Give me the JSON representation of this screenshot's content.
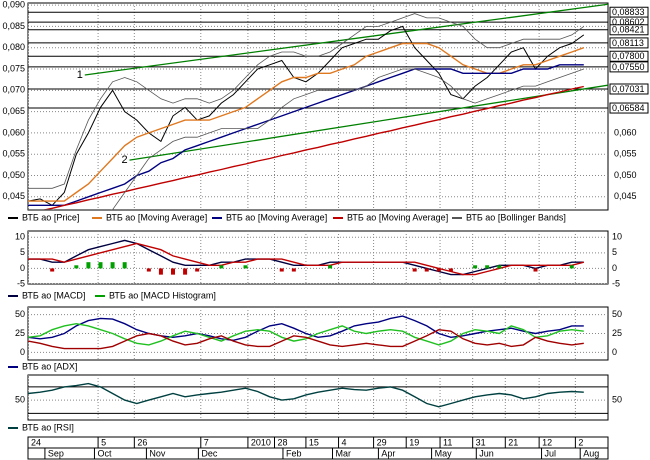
{
  "chart_data": [
    {
      "type": "line",
      "xlim": [
        0,
        48
      ],
      "xticks": [
        {
          "value": 0,
          "label": "24"
        },
        {
          "value": 5.8,
          "label": "5"
        },
        {
          "value": 8.8,
          "label": "26"
        },
        {
          "value": 14.3,
          "label": "7"
        },
        {
          "value": 18.2,
          "label": "2010"
        },
        {
          "value": 20.4,
          "label": "28"
        },
        {
          "value": 23.0,
          "label": "15"
        },
        {
          "value": 25.7,
          "label": "4"
        },
        {
          "value": 28.6,
          "label": "29"
        },
        {
          "value": 31.3,
          "label": "19"
        },
        {
          "value": 34.1,
          "label": "11"
        },
        {
          "value": 36.8,
          "label": "31"
        },
        {
          "value": 39.5,
          "label": "21"
        },
        {
          "value": 42.3,
          "label": "12"
        },
        {
          "value": 45.3,
          "label": "2"
        }
      ],
      "xtick_months": [
        {
          "value": 1.4,
          "label": "Sep"
        },
        {
          "value": 5.5,
          "label": "Oct"
        },
        {
          "value": 9.8,
          "label": "Nov"
        },
        {
          "value": 14.1,
          "label": "Dec"
        },
        {
          "value": 21.1,
          "label": "Feb"
        },
        {
          "value": 25.2,
          "label": "Mar"
        },
        {
          "value": 29.0,
          "label": "Apr"
        },
        {
          "value": 33.4,
          "label": "May"
        },
        {
          "value": 37.1,
          "label": "Jun"
        },
        {
          "value": 42.5,
          "label": "Jul"
        },
        {
          "value": 45.7,
          "label": "Aug"
        }
      ],
      "ylim": [
        0.0419,
        0.0905
      ],
      "yticks": [
        {
          "value": 0.09,
          "label": "0,090"
        },
        {
          "value": 0.085,
          "label": "0,085"
        },
        {
          "value": 0.08,
          "label": "0,080"
        },
        {
          "value": 0.075,
          "label": "0,075"
        },
        {
          "value": 0.07,
          "label": "0,070"
        },
        {
          "value": 0.065,
          "label": "0,065"
        },
        {
          "value": 0.06,
          "label": "0,060"
        },
        {
          "value": 0.055,
          "label": "0,055"
        },
        {
          "value": 0.05,
          "label": "0,050"
        },
        {
          "value": 0.045,
          "label": "0,045"
        }
      ],
      "right_ticks": [
        {
          "value": 0.06,
          "label": "0,060"
        },
        {
          "value": 0.055,
          "label": "0,055"
        },
        {
          "value": 0.05,
          "label": "0,050"
        },
        {
          "value": 0.045,
          "label": "0,045"
        }
      ],
      "levels": [
        {
          "value": 0.08833,
          "label": "0,08833"
        },
        {
          "value": 0.08602,
          "label": "0,08602"
        },
        {
          "value": 0.08421,
          "label": "0,08421"
        },
        {
          "value": 0.08113,
          "label": "0,08113"
        },
        {
          "value": 0.078,
          "label": "0,07800"
        },
        {
          "value": 0.0755,
          "label": "0,07550"
        },
        {
          "value": 0.07031,
          "label": "0,07031"
        },
        {
          "value": 0.06584,
          "label": "0,06584"
        }
      ],
      "trendlines": [
        {
          "label": "1",
          "color": "#008000",
          "from": [
            4.7,
            0.0736
          ],
          "to": [
            48,
            0.0902
          ]
        },
        {
          "label": "2",
          "color": "#008000",
          "from": [
            8.4,
            0.0536
          ],
          "to": [
            48,
            0.0712
          ]
        }
      ],
      "grid": true,
      "series": [
        {
          "name": "ВТБ ао [Price]",
          "color": "#000000",
          "values": [
            0.044,
            0.0445,
            0.043,
            0.046,
            0.055,
            0.06,
            0.066,
            0.07,
            0.065,
            0.063,
            0.06,
            0.058,
            0.064,
            0.066,
            0.063,
            0.064,
            0.067,
            0.069,
            0.072,
            0.075,
            0.076,
            0.077,
            0.073,
            0.072,
            0.074,
            0.077,
            0.08,
            0.081,
            0.082,
            0.082,
            0.084,
            0.085,
            0.08,
            0.077,
            0.074,
            0.069,
            0.068,
            0.071,
            0.073,
            0.076,
            0.079,
            0.08,
            0.075,
            0.078,
            0.08,
            0.081,
            0.083
          ]
        },
        {
          "name": "ВТБ ао [Moving Average]",
          "color": "#e07820",
          "values": [
            0.044,
            0.044,
            0.044,
            0.044,
            0.046,
            0.048,
            0.051,
            0.054,
            0.057,
            0.059,
            0.06,
            0.061,
            0.062,
            0.063,
            0.063,
            0.063,
            0.064,
            0.065,
            0.066,
            0.068,
            0.07,
            0.072,
            0.073,
            0.073,
            0.074,
            0.074,
            0.075,
            0.076,
            0.078,
            0.079,
            0.08,
            0.081,
            0.081,
            0.081,
            0.08,
            0.078,
            0.076,
            0.075,
            0.074,
            0.074,
            0.075,
            0.076,
            0.076,
            0.077,
            0.078,
            0.079,
            0.08
          ]
        },
        {
          "name": "ВТБ ао [Moving Average]",
          "color": "#000080",
          "values": [
            0.043,
            0.043,
            0.043,
            0.043,
            0.044,
            0.045,
            0.046,
            0.047,
            0.048,
            0.05,
            0.051,
            0.053,
            0.054,
            0.056,
            0.057,
            0.058,
            0.059,
            0.06,
            0.061,
            0.062,
            0.063,
            0.064,
            0.065,
            0.066,
            0.067,
            0.068,
            0.069,
            0.07,
            0.071,
            0.072,
            0.073,
            0.074,
            0.075,
            0.075,
            0.075,
            0.075,
            0.074,
            0.074,
            0.074,
            0.074,
            0.074,
            0.075,
            0.075,
            0.075,
            0.076,
            0.076,
            0.076
          ]
        },
        {
          "name": "ВТБ ао [Moving Average]",
          "color": "#c00000",
          "values": [
            0.041,
            0.0417,
            0.0423,
            0.043,
            0.0436,
            0.0443,
            0.0449,
            0.0456,
            0.0462,
            0.0469,
            0.0475,
            0.0482,
            0.0488,
            0.0495,
            0.0501,
            0.0508,
            0.0514,
            0.0521,
            0.0527,
            0.0534,
            0.054,
            0.0547,
            0.0553,
            0.056,
            0.0566,
            0.0573,
            0.0579,
            0.0586,
            0.0592,
            0.0599,
            0.0605,
            0.0612,
            0.0618,
            0.0625,
            0.0631,
            0.0638,
            0.0644,
            0.0651,
            0.0657,
            0.0664,
            0.067,
            0.0677,
            0.0683,
            0.069,
            0.0696,
            0.0703,
            0.0709
          ]
        },
        {
          "name": "ВТБ ао [Bollinger Bands]",
          "color": "#555555",
          "upper": [
            0.047,
            0.047,
            0.047,
            0.048,
            0.056,
            0.063,
            0.068,
            0.072,
            0.073,
            0.072,
            0.07,
            0.068,
            0.067,
            0.068,
            0.068,
            0.067,
            0.068,
            0.07,
            0.073,
            0.076,
            0.078,
            0.079,
            0.079,
            0.078,
            0.078,
            0.079,
            0.081,
            0.083,
            0.085,
            0.085,
            0.086,
            0.087,
            0.088,
            0.087,
            0.087,
            0.086,
            0.085,
            0.082,
            0.08,
            0.08,
            0.081,
            0.082,
            0.082,
            0.082,
            0.082,
            0.083,
            0.085
          ],
          "lower": [
            0.042,
            0.042,
            0.042,
            0.041,
            0.04,
            0.039,
            0.04,
            0.042,
            0.046,
            0.05,
            0.054,
            0.056,
            0.058,
            0.059,
            0.059,
            0.06,
            0.061,
            0.061,
            0.061,
            0.061,
            0.063,
            0.066,
            0.068,
            0.069,
            0.07,
            0.07,
            0.07,
            0.07,
            0.071,
            0.073,
            0.074,
            0.075,
            0.075,
            0.074,
            0.073,
            0.071,
            0.068,
            0.067,
            0.068,
            0.069,
            0.07,
            0.071,
            0.071,
            0.072,
            0.073,
            0.074,
            0.075
          ]
        }
      ]
    },
    {
      "type": "line",
      "ylim": [
        -5,
        12
      ],
      "yticks": [
        10,
        5,
        0,
        -5
      ],
      "grid": true,
      "series": [
        {
          "name": "ВТБ ао [MACD]",
          "color": "#000040",
          "values": [
            3,
            3,
            2,
            2,
            4,
            6,
            7,
            8,
            9,
            8,
            6,
            4,
            2,
            1,
            1,
            1,
            2,
            2,
            3,
            3,
            3,
            2,
            1,
            1,
            1,
            2,
            2,
            2,
            2,
            2,
            2,
            2,
            1,
            0,
            -1,
            -2,
            -2,
            -1,
            0,
            1,
            1,
            1,
            0,
            1,
            1,
            2,
            2
          ]
        },
        {
          "color": "#c00000",
          "values": [
            3,
            3,
            3,
            2,
            3,
            4,
            5,
            6,
            7,
            8,
            7,
            6,
            4,
            3,
            2,
            1,
            1,
            2,
            2,
            3,
            3,
            3,
            2,
            1,
            1,
            1,
            2,
            2,
            2,
            2,
            2,
            2,
            2,
            1,
            0,
            -1,
            -2,
            -2,
            -1,
            0,
            1,
            1,
            1,
            1,
            1,
            1,
            2
          ]
        },
        {
          "name": "ВТБ ао [MACD Histogram]",
          "kind": "histogram",
          "color": "#00a000",
          "negative_color": "#c00000",
          "values": [
            0,
            0,
            -1,
            0,
            1,
            2,
            2,
            2,
            2,
            0,
            -1,
            -2,
            -2,
            -2,
            -1,
            0,
            1,
            0,
            1,
            0,
            0,
            -1,
            -1,
            0,
            0,
            1,
            0,
            0,
            0,
            0,
            0,
            0,
            -1,
            -1,
            -1,
            -1,
            0,
            1,
            1,
            1,
            0,
            0,
            -1,
            0,
            0,
            1,
            0
          ]
        }
      ]
    },
    {
      "type": "line",
      "ylim": [
        -10,
        60
      ],
      "yticks": [
        50,
        25,
        0
      ],
      "grid": true,
      "series": [
        {
          "name": "ВТБ ао [ADX]",
          "color": "#000080",
          "values": [
            20,
            18,
            20,
            25,
            35,
            42,
            45,
            44,
            38,
            30,
            25,
            22,
            20,
            22,
            25,
            22,
            18,
            16,
            20,
            28,
            35,
            38,
            32,
            25,
            20,
            22,
            28,
            35,
            38,
            40,
            45,
            48,
            42,
            35,
            25,
            20,
            22,
            25,
            28,
            30,
            32,
            28,
            25,
            28,
            30,
            35,
            35
          ]
        },
        {
          "color": "#20c020",
          "values": [
            20,
            22,
            30,
            35,
            38,
            35,
            30,
            25,
            18,
            12,
            10,
            15,
            22,
            28,
            25,
            20,
            15,
            22,
            28,
            30,
            28,
            20,
            15,
            18,
            25,
            30,
            35,
            28,
            25,
            28,
            30,
            28,
            20,
            15,
            10,
            15,
            25,
            30,
            28,
            25,
            35,
            30,
            20,
            22,
            28,
            30,
            28
          ]
        },
        {
          "color": "#a00000",
          "values": [
            15,
            12,
            8,
            5,
            5,
            5,
            5,
            8,
            15,
            22,
            25,
            22,
            15,
            10,
            12,
            18,
            22,
            15,
            10,
            8,
            8,
            15,
            22,
            20,
            15,
            10,
            8,
            10,
            12,
            10,
            8,
            8,
            15,
            22,
            30,
            28,
            18,
            12,
            10,
            12,
            8,
            10,
            20,
            15,
            12,
            10,
            12
          ]
        }
      ]
    },
    {
      "type": "line",
      "ylim": [
        20,
        88
      ],
      "yticks": [
        50
      ],
      "levels": [
        30,
        70
      ],
      "grid": true,
      "series": [
        {
          "name": "ВТБ ао [RSI]",
          "color": "#004040",
          "values": [
            60,
            62,
            65,
            70,
            72,
            75,
            70,
            60,
            50,
            45,
            50,
            55,
            60,
            55,
            58,
            60,
            62,
            65,
            68,
            63,
            55,
            50,
            52,
            58,
            62,
            65,
            68,
            66,
            65,
            68,
            70,
            65,
            55,
            45,
            40,
            45,
            50,
            55,
            58,
            60,
            58,
            52,
            55,
            60,
            62,
            63,
            62
          ]
        }
      ]
    }
  ]
}
